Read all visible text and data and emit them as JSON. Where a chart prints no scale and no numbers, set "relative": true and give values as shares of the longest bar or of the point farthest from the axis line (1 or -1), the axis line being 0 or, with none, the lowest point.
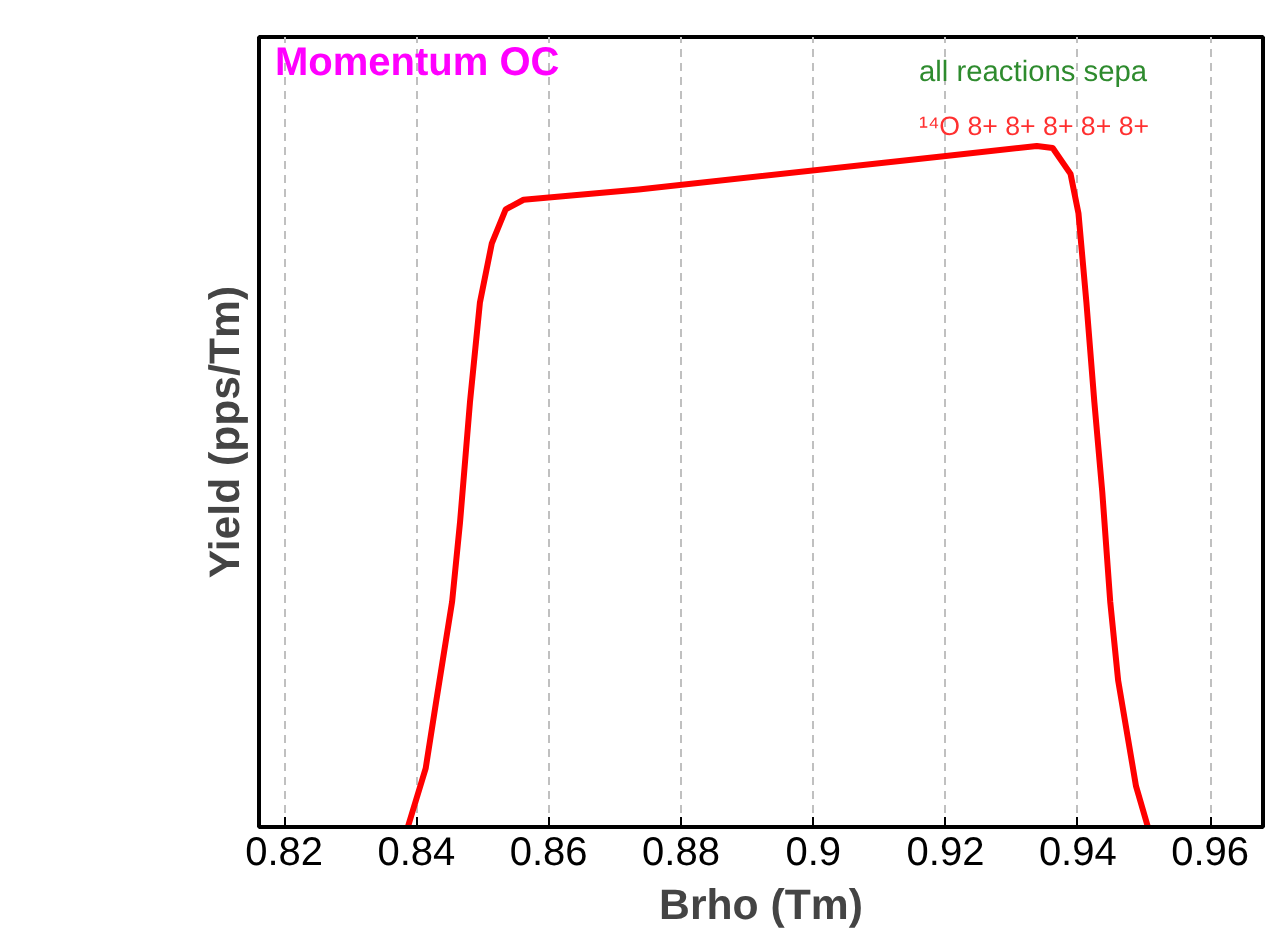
{
  "chart_data": {
    "type": "line",
    "xlabel": "Brho (Tm)",
    "ylabel": "Yield (pps/Tm)",
    "relative": true,
    "annotations": [
      "Momentum OC",
      "¹⁴O 8+ 8+ 8+ 8+ 8+",
      "all reactions sepa"
    ],
    "xlim": [
      0.8162,
      0.968
    ],
    "xticks": [
      0.82,
      0.84,
      0.86,
      0.88,
      0.9,
      0.92,
      0.94,
      0.96
    ],
    "grid": true,
    "marker": "none",
    "line_style": "solid",
    "series": [
      {
        "color": "#ff0000",
        "x": [
          0.8387,
          0.8414,
          0.843,
          0.8454,
          0.8466,
          0.8481,
          0.8496,
          0.8514,
          0.8535,
          0.8562,
          0.8736,
          0.9197,
          0.9338,
          0.9362,
          0.9389,
          0.9401,
          0.9413,
          0.9425,
          0.9437,
          0.9449,
          0.9461,
          0.9488,
          0.9506
        ],
        "values": [
          0,
          0.086,
          0.185,
          0.331,
          0.448,
          0.624,
          0.77,
          0.857,
          0.907,
          0.921,
          0.936,
          0.985,
          1,
          0.997,
          0.959,
          0.901,
          0.77,
          0.624,
          0.492,
          0.331,
          0.215,
          0.06,
          0
        ]
      }
    ]
  }
}
